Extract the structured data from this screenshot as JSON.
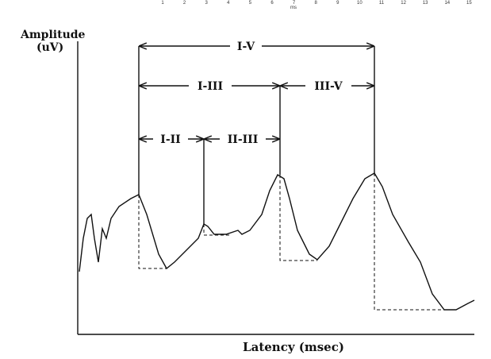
{
  "ruler": {
    "ticks": [
      1,
      2,
      3,
      4,
      5,
      6,
      7,
      8,
      9,
      10,
      11,
      12,
      13,
      14,
      15
    ],
    "unit": "ms"
  },
  "axes": {
    "y_label_line1": "Amplitude",
    "y_label_line2": "(uV)",
    "x_label": "Latency (msec)"
  },
  "intervals": {
    "i_v": "I-V",
    "i_iii": "I-III",
    "iii_v": "III-V",
    "i_ii": "I-II",
    "ii_iii": "II-III"
  }
}
